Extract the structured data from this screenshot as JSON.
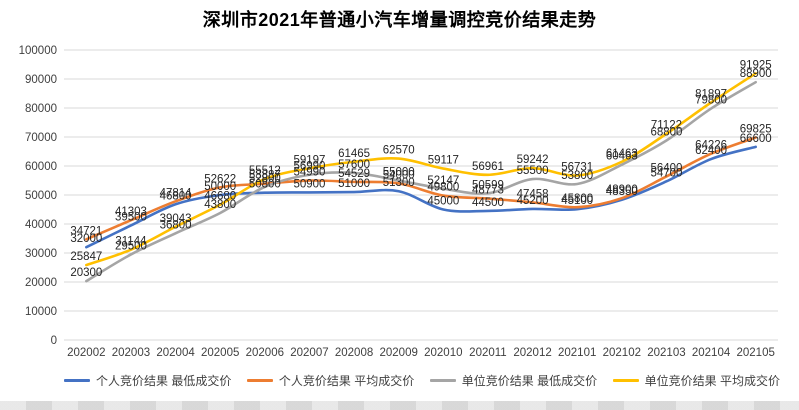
{
  "title": "深圳市2021年普通小汽车增量调控竞价结果走势",
  "colors": {
    "grid": "#d9d9d9",
    "axis_text": "#404040",
    "data_label": "#262626",
    "background": "#ffffff"
  },
  "chart_data": {
    "type": "line",
    "title": "深圳市2021年普通小汽车增量调控竞价结果走势",
    "categories": [
      "202002",
      "202003",
      "202004",
      "202005",
      "202006",
      "202007",
      "202008",
      "202009",
      "202010",
      "202011",
      "202012",
      "202101",
      "202102",
      "202103",
      "202104",
      "202105"
    ],
    "series": [
      {
        "name": "个人竞价结果 最低成交价",
        "color": "#4472C4",
        "values": [
          32000,
          39500,
          46800,
          50000,
          50800,
          50900,
          51000,
          51300,
          45000,
          44500,
          45200,
          45100,
          48350,
          54700,
          62400,
          66600
        ]
      },
      {
        "name": "个人竞价结果 平均成交价",
        "color": "#ED7D31",
        "values": [
          34721,
          41303,
          47814,
          52622,
          53887,
          54990,
          54529,
          54000,
          49800,
          48773,
          47458,
          45800,
          48900,
          56400,
          64226,
          69825
        ]
      },
      {
        "name": "单位竞价结果 最低成交价",
        "color": "#A5A5A5",
        "values": [
          20300,
          29500,
          36800,
          43800,
          52800,
          56990,
          57600,
          55000,
          52147,
          50599,
          55500,
          53800,
          60463,
          68800,
          79800,
          88900
        ]
      },
      {
        "name": "单位竞价结果 平均成交价",
        "color": "#FFC000",
        "values": [
          25847,
          31144,
          39043,
          46680,
          55512,
          59197,
          61465,
          62570,
          59117,
          56961,
          59242,
          56731,
          61463,
          71122,
          81897,
          91925
        ]
      }
    ],
    "xlabel": "",
    "ylabel": "",
    "ylim": [
      0,
      100000
    ],
    "yticks": [
      0,
      10000,
      20000,
      30000,
      40000,
      50000,
      60000,
      70000,
      80000,
      90000,
      100000
    ],
    "grid": true,
    "smooth_lines": true,
    "data_labels": true,
    "legend_position": "bottom"
  }
}
